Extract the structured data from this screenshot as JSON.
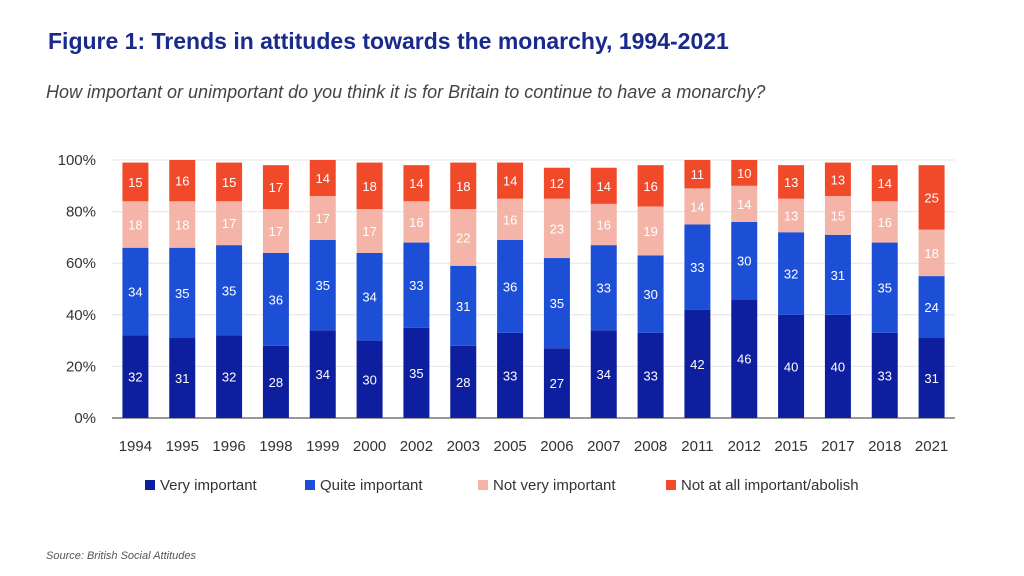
{
  "title": "Figure 1: Trends in attitudes towards the monarchy, 1994-2021",
  "subtitle": "How important or unimportant do you think it is for Britain to continue to have a monarchy?",
  "source": "Source: British Social Attitudes",
  "colors": {
    "very_important": "#0d1f9e",
    "quite_important": "#1d4fd6",
    "not_very_important": "#f5b4a8",
    "not_at_all": "#f04a2a",
    "axis_text": "#333333",
    "title": "#1a2a8c"
  },
  "chart_data": {
    "type": "bar",
    "stacked": true,
    "categories": [
      "1994",
      "1995",
      "1996",
      "1998",
      "1999",
      "2000",
      "2002",
      "2003",
      "2005",
      "2006",
      "2007",
      "2008",
      "2011",
      "2012",
      "2015",
      "2017",
      "2018",
      "2021"
    ],
    "series": [
      {
        "name": "Very important",
        "values": [
          32,
          31,
          32,
          28,
          34,
          30,
          35,
          28,
          33,
          27,
          34,
          33,
          42,
          46,
          40,
          40,
          33,
          31
        ]
      },
      {
        "name": "Quite important",
        "values": [
          34,
          35,
          35,
          36,
          35,
          34,
          33,
          31,
          36,
          35,
          33,
          30,
          33,
          30,
          32,
          31,
          35,
          24
        ]
      },
      {
        "name": "Not very important",
        "values": [
          18,
          18,
          17,
          17,
          17,
          17,
          16,
          22,
          16,
          23,
          16,
          19,
          14,
          14,
          13,
          15,
          16,
          18
        ]
      },
      {
        "name": "Not at all important/abolish",
        "values": [
          15,
          16,
          15,
          17,
          14,
          18,
          14,
          18,
          14,
          12,
          14,
          16,
          11,
          10,
          13,
          13,
          14,
          25
        ]
      }
    ],
    "y_ticks": [
      "0%",
      "20%",
      "40%",
      "60%",
      "80%",
      "100%"
    ],
    "ylim": [
      0,
      100
    ],
    "legend_position": "bottom",
    "grid": true
  }
}
